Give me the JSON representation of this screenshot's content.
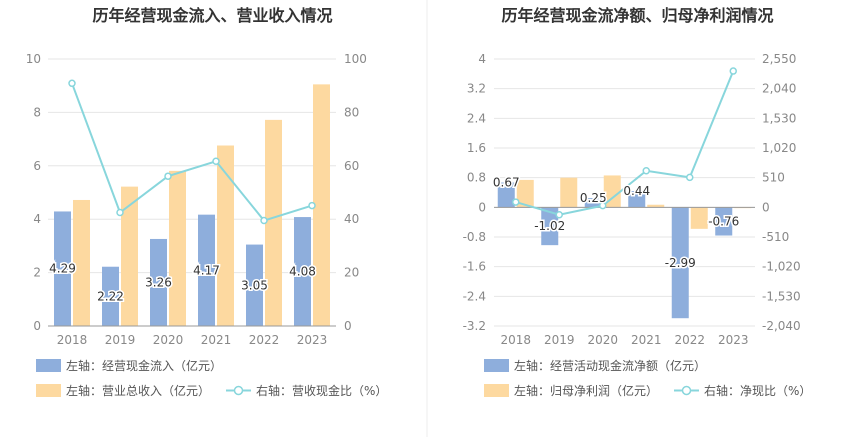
{
  "chart_data": [
    {
      "type": "bar",
      "title": "历年经营现金流入、营业收入情况",
      "categories": [
        "2018",
        "2019",
        "2020",
        "2021",
        "2022",
        "2023"
      ],
      "left_axis": {
        "ylim": [
          0,
          10
        ],
        "ticks": [
          "0",
          "2",
          "4",
          "6",
          "8",
          "10"
        ]
      },
      "right_axis": {
        "ylim": [
          0,
          100
        ],
        "ticks": [
          "0",
          "20",
          "40",
          "60",
          "80",
          "100"
        ]
      },
      "series": [
        {
          "name": "左轴：经营现金流入（亿元）",
          "kind": "bar",
          "axis": "left",
          "color": "#8eaedc",
          "values": [
            4.29,
            2.22,
            3.26,
            4.17,
            3.05,
            4.08
          ],
          "labels": [
            "4.29",
            "2.22",
            "3.26",
            "4.17",
            "3.05",
            "4.08"
          ]
        },
        {
          "name": "左轴：营业总收入（亿元）",
          "kind": "bar",
          "axis": "left",
          "color": "#fdd9a0",
          "values": [
            4.72,
            5.22,
            5.81,
            6.76,
            7.72,
            9.05
          ]
        },
        {
          "name": "右轴：营收现金比（%）",
          "kind": "line",
          "axis": "right",
          "color": "#88d6dc",
          "values": [
            90.9,
            42.5,
            56.1,
            61.7,
            39.5,
            45.1
          ]
        }
      ]
    },
    {
      "type": "bar",
      "title": "历年经营现金流净额、归母净利润情况",
      "categories": [
        "2018",
        "2019",
        "2020",
        "2021",
        "2022",
        "2023"
      ],
      "left_axis": {
        "ylim": [
          -3.2,
          4
        ],
        "ticks": [
          "-3.2",
          "-2.4",
          "-1.6",
          "-0.8",
          "0",
          "0.8",
          "1.6",
          "2.4",
          "3.2",
          "4"
        ]
      },
      "right_axis": {
        "ylim": [
          -2040,
          2550
        ],
        "ticks": [
          "-2,040",
          "-1,530",
          "-1,020",
          "-510",
          "0",
          "510",
          "1,020",
          "1,530",
          "2,040",
          "2,550"
        ]
      },
      "series": [
        {
          "name": "左轴：经营活动现金流净额（亿元）",
          "kind": "bar",
          "axis": "left",
          "color": "#8eaedc",
          "values": [
            0.67,
            -1.02,
            0.25,
            0.44,
            -2.99,
            -0.76
          ],
          "labels": [
            "0.67",
            "-1.02",
            "0.25",
            "0.44",
            "-2.99",
            "-0.76"
          ]
        },
        {
          "name": "左轴：归母净利润（亿元）",
          "kind": "bar",
          "axis": "left",
          "color": "#fdd9a0",
          "values": [
            0.74,
            0.8,
            0.86,
            0.07,
            -0.58,
            -0.02
          ]
        },
        {
          "name": "右轴：净现比（%）",
          "kind": "line",
          "axis": "right",
          "color": "#88d6dc",
          "values": [
            90.5,
            -127.5,
            29.1,
            628.6,
            515.5,
            2343
          ]
        }
      ]
    }
  ]
}
